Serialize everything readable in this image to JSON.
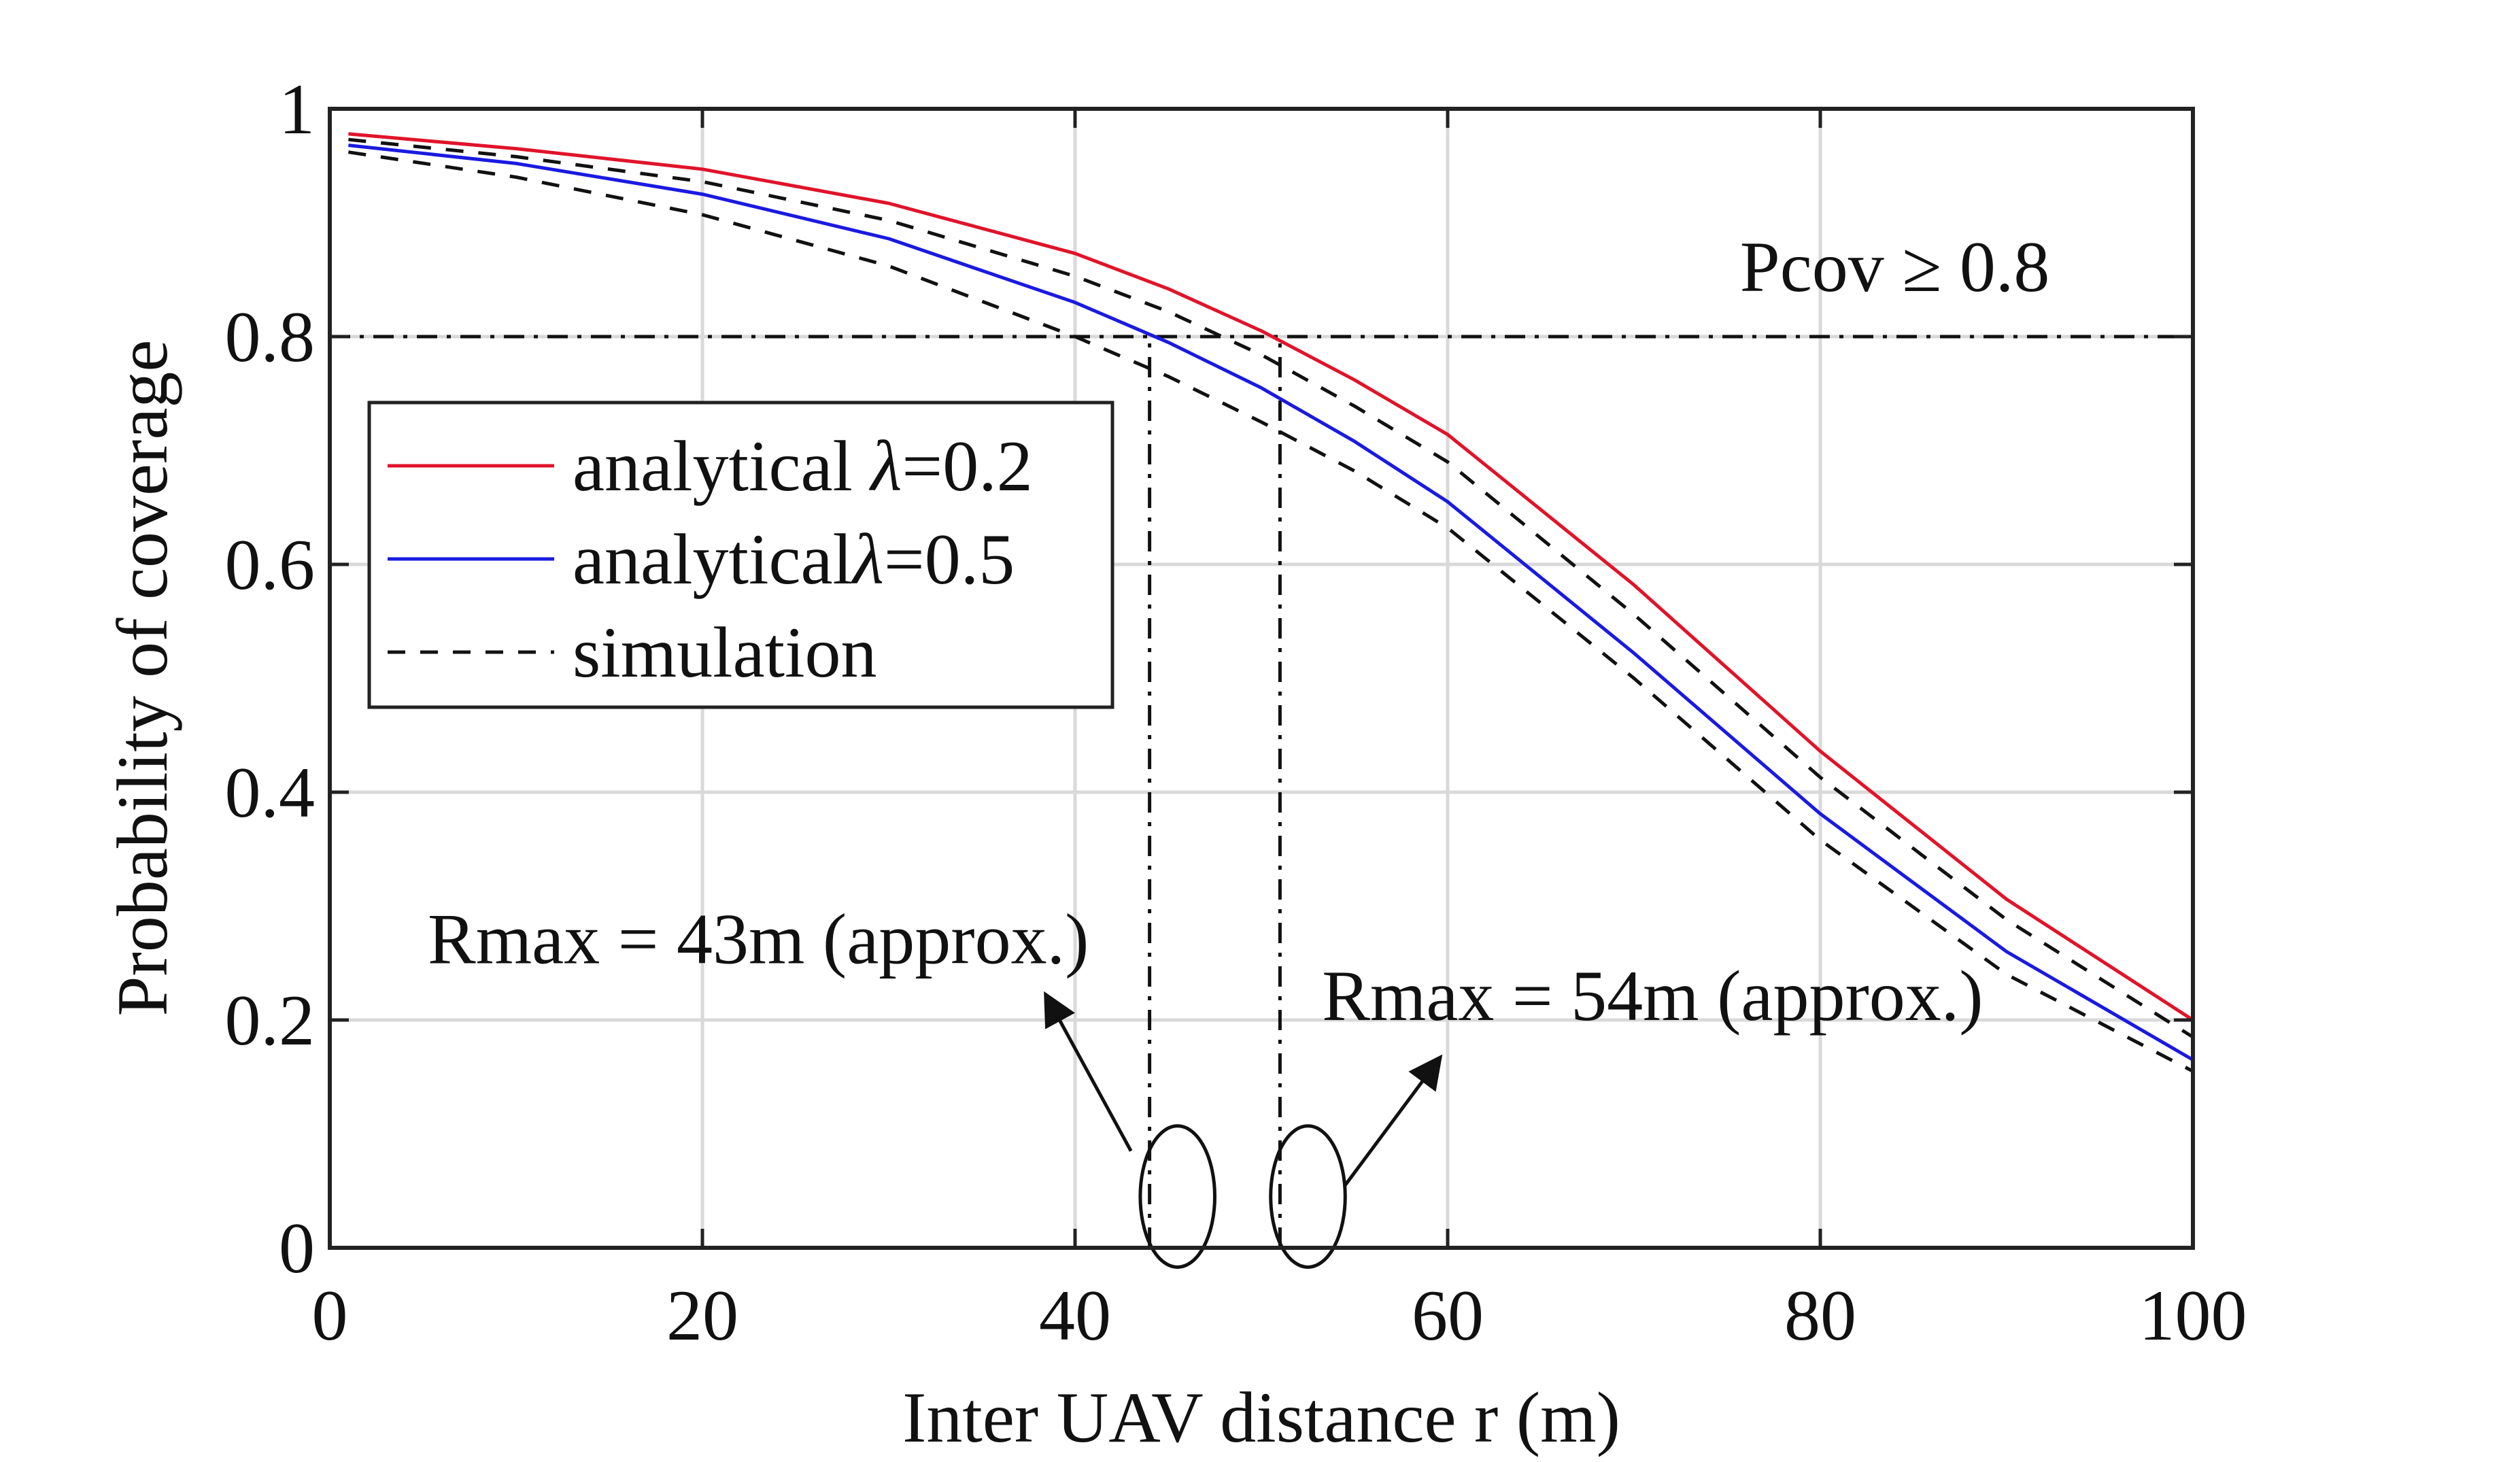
{
  "chart_data": {
    "type": "line",
    "xlabel": "Inter UAV distance r (m)",
    "ylabel": "Probability of coverage",
    "xlim": [
      0,
      100
    ],
    "ylim": [
      0,
      1
    ],
    "x_ticks": [
      0,
      20,
      40,
      60,
      80,
      100
    ],
    "y_ticks": [
      0,
      0.2,
      0.4,
      0.6,
      0.8,
      1
    ],
    "x_tick_labels": [
      "0",
      "20",
      "40",
      "60",
      "80",
      "100"
    ],
    "y_tick_labels": [
      "0",
      "0.2",
      "0.4",
      "0.6",
      "0.8",
      "1"
    ],
    "grid": true,
    "legend_position": "top-left",
    "series": [
      {
        "name": "analytical λ=0.2",
        "legend_prefix": "analytical ",
        "legend_symbol": "λ",
        "legend_suffix": "=0.2",
        "style": "solid",
        "color": "#e0142a",
        "x": [
          1,
          10,
          20,
          30,
          40,
          45,
          50,
          55,
          60,
          70,
          80,
          90,
          100
        ],
        "y": [
          0.978,
          0.965,
          0.947,
          0.917,
          0.873,
          0.842,
          0.805,
          0.762,
          0.714,
          0.582,
          0.436,
          0.306,
          0.2
        ]
      },
      {
        "name": "analyticalλ=0.5",
        "legend_prefix": "analytical",
        "legend_symbol": "λ",
        "legend_suffix": "=0.5",
        "style": "solid",
        "color": "#1a1ae0",
        "x": [
          1,
          10,
          20,
          30,
          40,
          45,
          50,
          55,
          60,
          70,
          80,
          90,
          100
        ],
        "y": [
          0.968,
          0.952,
          0.925,
          0.886,
          0.83,
          0.795,
          0.755,
          0.708,
          0.655,
          0.522,
          0.381,
          0.26,
          0.165
        ]
      },
      {
        "name": "simulation",
        "style": "dashed",
        "color": "#111111",
        "x": [
          1,
          10,
          20,
          30,
          40,
          45,
          50,
          55,
          60,
          70,
          80,
          90,
          100
        ],
        "y": [
          0.973,
          0.958,
          0.936,
          0.902,
          0.853,
          0.822,
          0.784,
          0.739,
          0.69,
          0.556,
          0.413,
          0.288,
          0.185
        ]
      },
      {
        "name": "simulation",
        "style": "dashed",
        "color": "#111111",
        "show_in_legend": false,
        "x": [
          1,
          10,
          20,
          30,
          40,
          45,
          50,
          55,
          60,
          70,
          80,
          90,
          100
        ],
        "y": [
          0.962,
          0.94,
          0.907,
          0.862,
          0.8,
          0.765,
          0.725,
          0.682,
          0.632,
          0.5,
          0.358,
          0.24,
          0.155
        ]
      }
    ],
    "reference_lines": [
      {
        "orientation": "horizontal",
        "y": 0.8,
        "x_from": 0,
        "x_to": 100,
        "style": "dashdot"
      },
      {
        "orientation": "vertical",
        "x": 44,
        "y_from": 0,
        "y_to": 0.8,
        "style": "dashdot"
      },
      {
        "orientation": "vertical",
        "x": 51,
        "y_from": 0,
        "y_to": 0.8,
        "style": "dashdot"
      }
    ],
    "annotations": [
      {
        "text": "Pcov ≥ 0.8",
        "x": 84,
        "y": 0.84
      },
      {
        "text": "Rmax = 43m (approx.)",
        "x": 23,
        "y": 0.25
      },
      {
        "text": "Rmax = 54m (approx.)",
        "x": 71,
        "y": 0.2
      }
    ],
    "markers": [
      {
        "shape": "ellipse",
        "cx": 45.5,
        "cy": 0.045,
        "rx": 2.0,
        "ry": 0.062
      },
      {
        "shape": "ellipse",
        "cx": 52.5,
        "cy": 0.045,
        "rx": 2.0,
        "ry": 0.062
      }
    ],
    "arrows": [
      {
        "from": [
          43,
          0.085
        ],
        "to": [
          38.5,
          0.22
        ]
      },
      {
        "from": [
          54.5,
          0.055
        ],
        "to": [
          59.5,
          0.165
        ]
      }
    ]
  }
}
